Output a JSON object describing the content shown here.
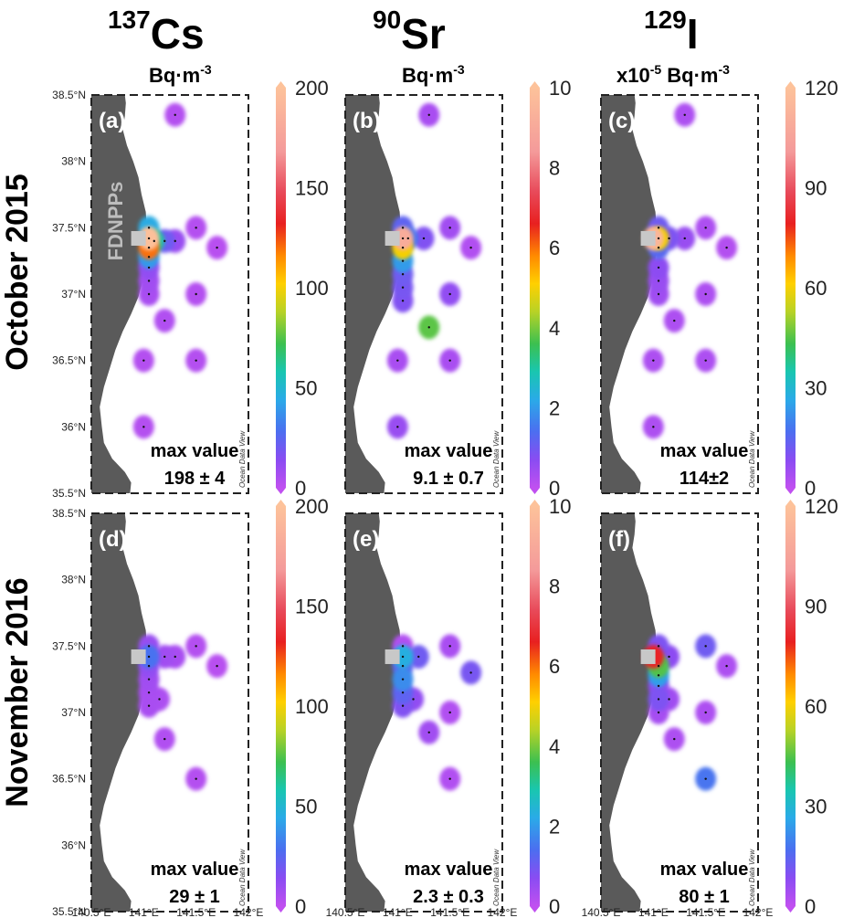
{
  "columns": [
    {
      "mass": "137",
      "element": "Cs",
      "unit_prefix": "",
      "unit": "Bq·m",
      "unit_exp": "-3",
      "colorbar_ticks": [
        "200",
        "150",
        "100",
        "50",
        "0"
      ],
      "max": 200
    },
    {
      "mass": "90",
      "element": "Sr",
      "unit_prefix": "",
      "unit": "Bq·m",
      "unit_exp": "-3",
      "colorbar_ticks": [
        "10",
        "8",
        "6",
        "4",
        "2",
        "0"
      ],
      "max": 10
    },
    {
      "mass": "129",
      "element": "I",
      "unit_prefix": "x10",
      "unit_prefix_exp": "-5",
      "unit": " Bq·m",
      "unit_exp": "-3",
      "colorbar_ticks": [
        "120",
        "90",
        "60",
        "30",
        "0"
      ],
      "max": 120
    }
  ],
  "rows": [
    {
      "label": "October 2015"
    },
    {
      "label": "November 2016"
    }
  ],
  "lat_ticks": [
    "38.5°N",
    "38°N",
    "37.5°N",
    "37°N",
    "36.5°N",
    "36°N",
    "35.5°N"
  ],
  "lon_ticks": [
    "140.5°E",
    "141°E",
    "141.5°E",
    "142°E"
  ],
  "watermark": "Ocean Data View",
  "site_label": "FDNPPs",
  "max_label": "max value",
  "panels": [
    {
      "id": "(a)",
      "max_value": "198 ± 4",
      "max": 198,
      "stations": [
        [
          141.05,
          37.42,
          198
        ],
        [
          141.05,
          37.35,
          120
        ],
        [
          141.05,
          37.28,
          40
        ],
        [
          141.1,
          37.4,
          60
        ],
        [
          141.2,
          37.4,
          20
        ],
        [
          141.3,
          37.4,
          10
        ],
        [
          141.05,
          37.5,
          45
        ],
        [
          141.05,
          37.2,
          12
        ],
        [
          141.05,
          37.1,
          8
        ],
        [
          141.05,
          37.0,
          6
        ],
        [
          141.2,
          36.8,
          4
        ],
        [
          141.5,
          37.0,
          3
        ],
        [
          141.5,
          37.5,
          3
        ],
        [
          141.7,
          37.35,
          2
        ],
        [
          141.0,
          36.5,
          3
        ],
        [
          141.5,
          36.5,
          3
        ],
        [
          141.0,
          36.0,
          3
        ],
        [
          141.3,
          38.35,
          3
        ]
      ]
    },
    {
      "id": "(b)",
      "max_value": "9.1 ± 0.7",
      "max": 9.1,
      "stations": [
        [
          141.05,
          37.42,
          9.1
        ],
        [
          141.05,
          37.35,
          5
        ],
        [
          141.05,
          37.25,
          2
        ],
        [
          141.1,
          37.42,
          1.5
        ],
        [
          141.25,
          37.42,
          0.8
        ],
        [
          141.05,
          37.5,
          1.2
        ],
        [
          141.05,
          37.15,
          1.0
        ],
        [
          141.05,
          37.05,
          0.9
        ],
        [
          141.05,
          36.95,
          0.8
        ],
        [
          141.3,
          36.75,
          3.8
        ],
        [
          141.5,
          37.0,
          0.6
        ],
        [
          141.5,
          37.5,
          0.4
        ],
        [
          141.7,
          37.35,
          0.2
        ],
        [
          141.0,
          36.5,
          0.3
        ],
        [
          141.5,
          36.5,
          0.3
        ],
        [
          141.0,
          36.0,
          0.5
        ],
        [
          141.3,
          38.35,
          0.3
        ]
      ]
    },
    {
      "id": "(c)",
      "max_value": "114±2",
      "max": 114,
      "stations": [
        [
          141.0,
          37.42,
          114
        ],
        [
          141.05,
          37.42,
          60
        ],
        [
          141.05,
          37.35,
          15
        ],
        [
          141.15,
          37.42,
          10
        ],
        [
          141.3,
          37.42,
          6
        ],
        [
          141.05,
          37.5,
          12
        ],
        [
          141.05,
          37.2,
          8
        ],
        [
          141.05,
          37.1,
          6
        ],
        [
          141.05,
          37.0,
          5
        ],
        [
          141.2,
          36.8,
          3
        ],
        [
          141.5,
          37.0,
          3
        ],
        [
          141.5,
          37.5,
          3
        ],
        [
          141.7,
          37.35,
          2
        ],
        [
          141.0,
          36.5,
          3
        ],
        [
          141.5,
          36.5,
          3
        ],
        [
          141.0,
          36.0,
          3
        ],
        [
          141.3,
          38.35,
          3
        ]
      ]
    },
    {
      "id": "(d)",
      "max_value": "29 ± 1",
      "max": 29,
      "stations": [
        [
          141.05,
          37.42,
          29
        ],
        [
          141.05,
          37.35,
          12
        ],
        [
          141.05,
          37.5,
          10
        ],
        [
          141.2,
          37.42,
          8
        ],
        [
          141.3,
          37.42,
          6
        ],
        [
          141.05,
          37.25,
          8
        ],
        [
          141.05,
          37.15,
          6
        ],
        [
          141.05,
          37.05,
          6
        ],
        [
          141.15,
          37.1,
          5
        ],
        [
          141.2,
          36.8,
          4
        ],
        [
          141.5,
          37.5,
          3
        ],
        [
          141.7,
          37.35,
          2
        ],
        [
          141.5,
          36.5,
          3
        ]
      ]
    },
    {
      "id": "(e)",
      "max_value": "2.3 ± 0.3",
      "max": 2.3,
      "stations": [
        [
          141.05,
          37.42,
          2.3
        ],
        [
          141.05,
          37.35,
          1.2
        ],
        [
          141.05,
          37.5,
          0.2
        ],
        [
          141.2,
          37.42,
          1.0
        ],
        [
          141.05,
          37.25,
          1.8
        ],
        [
          141.05,
          37.15,
          1.2
        ],
        [
          141.05,
          37.05,
          0.8
        ],
        [
          141.15,
          37.1,
          0.6
        ],
        [
          141.3,
          36.85,
          0.4
        ],
        [
          141.5,
          37.5,
          0.3
        ],
        [
          141.7,
          37.3,
          0.9
        ],
        [
          141.5,
          37.0,
          0.2
        ],
        [
          141.5,
          36.5,
          0.2
        ]
      ]
    },
    {
      "id": "(f)",
      "max_value": "80 ± 1",
      "max": 80,
      "stations": [
        [
          141.0,
          37.42,
          80
        ],
        [
          141.05,
          37.35,
          45
        ],
        [
          141.05,
          37.28,
          25
        ],
        [
          141.15,
          37.42,
          8
        ],
        [
          141.05,
          37.5,
          10
        ],
        [
          141.05,
          37.2,
          8
        ],
        [
          141.05,
          37.1,
          10
        ],
        [
          141.15,
          37.1,
          5
        ],
        [
          141.05,
          37.0,
          4
        ],
        [
          141.2,
          36.8,
          3
        ],
        [
          141.5,
          37.0,
          3
        ],
        [
          141.5,
          37.5,
          12
        ],
        [
          141.7,
          37.35,
          3
        ],
        [
          141.5,
          36.5,
          18
        ]
      ]
    }
  ]
}
